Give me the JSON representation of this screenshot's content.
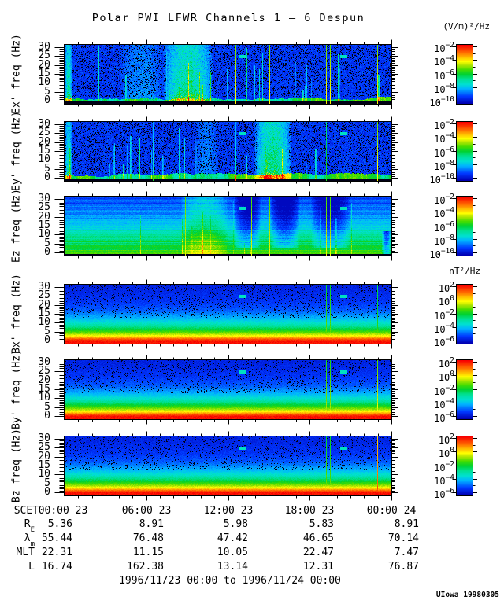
{
  "title": "Polar PWI LFWR Channels 1 — 6 Despun",
  "credit": "UIowa 19980305",
  "date_range": "1996/11/23 00:00 to 1996/11/24 00:00",
  "units": {
    "electric": "(V/m)²/Hz",
    "magnetic": "nT²/Hz"
  },
  "xaxis": {
    "prefix": "SCET",
    "labels": [
      "00:00 23",
      "06:00 23",
      "12:00 23",
      "18:00 23",
      "00:00 24"
    ]
  },
  "ephemeris": {
    "rows": [
      {
        "label": {
          "base": "R",
          "sub": "E"
        },
        "values": [
          "5.36",
          "8.91",
          "5.98",
          "5.83",
          "8.91"
        ]
      },
      {
        "label": {
          "base": "λ",
          "sub": "m"
        },
        "values": [
          "55.44",
          "76.48",
          "47.42",
          "46.65",
          "70.14"
        ]
      },
      {
        "label": {
          "base": "MLT",
          "sub": ""
        },
        "values": [
          "22.31",
          "11.15",
          "10.05",
          "22.47",
          "7.47"
        ]
      },
      {
        "label": {
          "base": "L",
          "sub": ""
        },
        "values": [
          "16.74",
          "162.38",
          "13.14",
          "12.31",
          "76.87"
        ]
      }
    ]
  },
  "chart_data": {
    "type": "heatmap",
    "title": "Polar PWI LFWR Channels 1 — 6 Despun",
    "subtitle": "1996/11/23 00:00 to 1996/11/24 00:00",
    "x_axis": {
      "label_prefix": "SCET",
      "hours": [
        0,
        6,
        12,
        18,
        24
      ],
      "tick_labels": [
        "00:00 23",
        "06:00 23",
        "12:00 23",
        "18:00 23",
        "00:00 24"
      ],
      "minor_step_hours": 1
    },
    "y_axis": {
      "units": "Hz",
      "range": [
        0,
        30
      ],
      "major_ticks": [
        0,
        5,
        10,
        15,
        20,
        25,
        30
      ],
      "minor_step": 1
    },
    "colorbars": {
      "log_base": "10",
      "electric": {
        "unit": "(V/m)²/Hz",
        "exponents": [
          -2,
          -4,
          -6,
          -8,
          -10
        ]
      },
      "magnetic": {
        "unit": "nT²/Hz",
        "exponents": [
          2,
          0,
          -2,
          -4,
          -6
        ]
      }
    },
    "colormap": [
      {
        "t": 0.0,
        "c": "#0000b2"
      },
      {
        "t": 0.12,
        "c": "#0038ff"
      },
      {
        "t": 0.25,
        "c": "#00b4ff"
      },
      {
        "t": 0.33,
        "c": "#00e0d0"
      },
      {
        "t": 0.42,
        "c": "#00e090"
      },
      {
        "t": 0.5,
        "c": "#00d232"
      },
      {
        "t": 0.58,
        "c": "#46dc00"
      },
      {
        "t": 0.66,
        "c": "#b4e600"
      },
      {
        "t": 0.72,
        "c": "#ffff00"
      },
      {
        "t": 0.8,
        "c": "#ffb400"
      },
      {
        "t": 0.88,
        "c": "#ff6400"
      },
      {
        "t": 1.0,
        "c": "#f80000"
      }
    ],
    "panels": [
      {
        "id": "ex",
        "ylabel": "Ex' freq (Hz)",
        "field": "electric",
        "kind": "dark",
        "seed": 11,
        "n_streaks": 30,
        "cbar_exponents": [
          -2,
          -4,
          -6,
          -8,
          -10
        ],
        "blobs": [
          {
            "x0": 0.0,
            "x1": 0.022,
            "amp": 0.38
          },
          {
            "x0": 0.17,
            "x1": 0.3,
            "amp": 0.14
          },
          {
            "x0": 0.3,
            "x1": 0.455,
            "amp": 0.42
          }
        ],
        "vlines": [
          {
            "x": 0.525,
            "t": 0.73
          },
          {
            "x": 0.627,
            "t": 0.73
          },
          {
            "x": 0.803,
            "t": 0.73
          },
          {
            "x": 0.814,
            "t": 0.73
          },
          {
            "x": 0.958,
            "t": 0.73
          }
        ],
        "dashes": [
          {
            "x": 0.545,
            "hz": 25
          },
          {
            "x": 0.855,
            "hz": 25
          }
        ]
      },
      {
        "id": "ey",
        "ylabel": "Ey' freq (Hz)",
        "field": "electric",
        "kind": "dark",
        "seed": 22,
        "n_streaks": 22,
        "cbar_exponents": [
          -2,
          -4,
          -6,
          -8,
          -10
        ],
        "blobs": [
          {
            "x0": 0.0,
            "x1": 0.022,
            "amp": 0.32
          },
          {
            "x0": 0.4,
            "x1": 0.47,
            "amp": 0.12
          },
          {
            "x0": 0.58,
            "x1": 0.695,
            "amp": 0.45
          }
        ],
        "vlines": [
          {
            "x": 0.27,
            "t": 0.36
          },
          {
            "x": 0.525,
            "t": 0.36
          },
          {
            "x": 0.803,
            "t": 0.55
          },
          {
            "x": 0.958,
            "t": 0.73
          }
        ],
        "dashes": [
          {
            "x": 0.545,
            "hz": 25
          },
          {
            "x": 0.855,
            "hz": 25
          }
        ]
      },
      {
        "id": "ez",
        "ylabel": "Ez freq (Hz)",
        "field": "electric",
        "kind": "grad-e",
        "seed": 33,
        "n_streaks": 14,
        "cbar_exponents": [
          -2,
          -4,
          -6,
          -8,
          -10
        ],
        "blobs": [
          {
            "x0": 0.355,
            "x1": 0.5,
            "amp": 0.17
          },
          {
            "x0": 0.52,
            "x1": 0.6,
            "amp": -0.22,
            "fmin": 3
          },
          {
            "x0": 0.63,
            "x1": 0.72,
            "amp": -0.22,
            "fmin": 3
          },
          {
            "x0": 0.755,
            "x1": 0.875,
            "amp": -0.2,
            "fmin": 3
          },
          {
            "x0": 0.972,
            "x1": 1.0,
            "amp": -0.3,
            "fmax": 12
          }
        ],
        "vlines": [
          {
            "x": 0.369,
            "t": 0.7
          },
          {
            "x": 0.573,
            "t": 0.7
          },
          {
            "x": 0.627,
            "t": 0.7
          },
          {
            "x": 0.803,
            "t": 0.7
          },
          {
            "x": 0.814,
            "t": 0.7
          },
          {
            "x": 0.887,
            "t": 0.7
          }
        ],
        "dashes": [
          {
            "x": 0.545,
            "hz": 25
          },
          {
            "x": 0.855,
            "hz": 25
          }
        ]
      },
      {
        "id": "bx",
        "ylabel": "Bx' freq (Hz)",
        "field": "magnetic",
        "kind": "grad-b",
        "seed": 44,
        "n_streaks": 6,
        "cbar_exponents": [
          2,
          0,
          -2,
          -4,
          -6
        ],
        "blobs": [],
        "vlines": [
          {
            "x": 0.803,
            "t": 0.62
          },
          {
            "x": 0.814,
            "t": 0.62
          },
          {
            "x": 0.958,
            "t": 0.58
          }
        ],
        "dashes": [
          {
            "x": 0.545,
            "hz": 25
          },
          {
            "x": 0.855,
            "hz": 25
          }
        ]
      },
      {
        "id": "by",
        "ylabel": "By' freq (Hz)",
        "field": "magnetic",
        "kind": "grad-b",
        "seed": 55,
        "n_streaks": 6,
        "cbar_exponents": [
          2,
          0,
          -2,
          -4,
          -6
        ],
        "blobs": [],
        "vlines": [
          {
            "x": 0.803,
            "t": 0.66
          },
          {
            "x": 0.814,
            "t": 0.66
          },
          {
            "x": 0.958,
            "t": 0.72
          }
        ],
        "dashes": [
          {
            "x": 0.545,
            "hz": 25
          },
          {
            "x": 0.855,
            "hz": 25
          }
        ]
      },
      {
        "id": "bz",
        "ylabel": "Bz freq (Hz)",
        "field": "magnetic",
        "kind": "grad-b",
        "seed": 66,
        "n_streaks": 6,
        "cbar_exponents": [
          2,
          0,
          -2,
          -4,
          -6
        ],
        "blobs": [],
        "vlines": [
          {
            "x": 0.803,
            "t": 0.62
          },
          {
            "x": 0.814,
            "t": 0.62
          },
          {
            "x": 0.958,
            "t": 0.9
          }
        ],
        "dashes": [
          {
            "x": 0.545,
            "hz": 25
          },
          {
            "x": 0.855,
            "hz": 25
          }
        ]
      }
    ]
  }
}
